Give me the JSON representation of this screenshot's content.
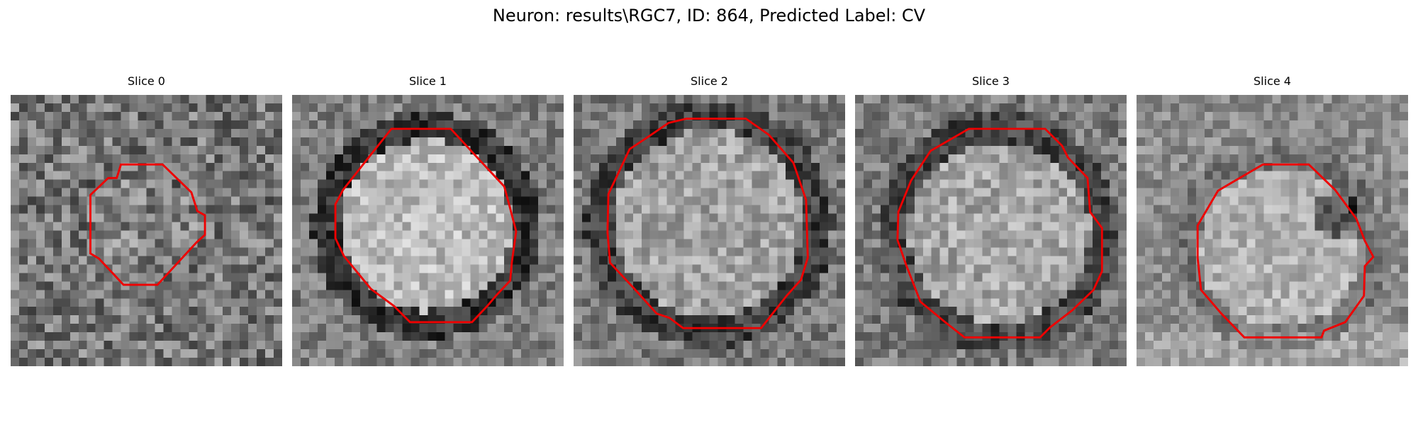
{
  "figure": {
    "title": "Neuron: results\\RGC7, ID: 864, Predicted Label: CV"
  },
  "panels": [
    {
      "label": "Slice 0"
    },
    {
      "label": "Slice 1"
    },
    {
      "label": "Slice 2"
    },
    {
      "label": "Slice 3"
    },
    {
      "label": "Slice 4"
    }
  ],
  "colors": {
    "contour": "#ee0000",
    "colormap": "grayscale"
  }
}
